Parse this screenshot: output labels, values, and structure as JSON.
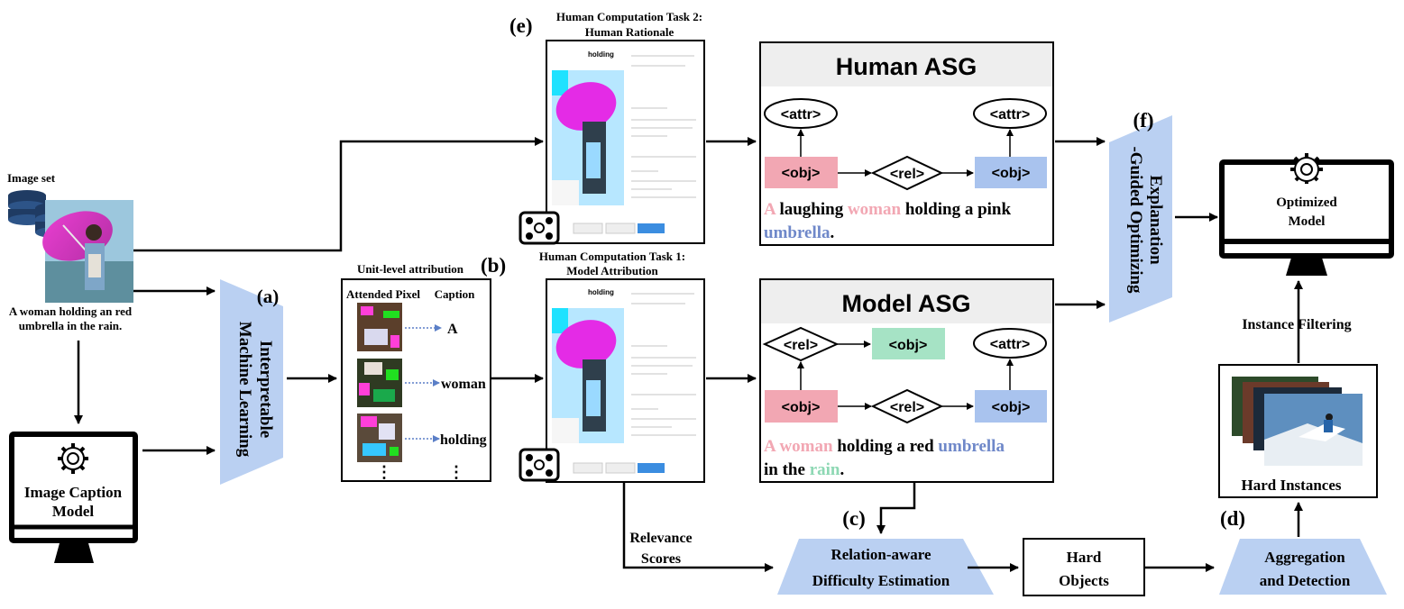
{
  "image_set": {
    "label": "Image set",
    "caption_line1": "A woman holding an red",
    "caption_line2": "umbrella in the rain."
  },
  "caption_model": {
    "line1": "Image Caption",
    "line2": "Model"
  },
  "iml": {
    "marker": "(a)",
    "line1": "Interpretable",
    "line2": "Machine Learning"
  },
  "unit_attribution": {
    "title": "Unit-level attribution",
    "col_pixel": "Attended Pixel",
    "col_caption": "Caption",
    "words": [
      "A",
      "woman",
      "holding"
    ],
    "ellipsis": "⋮"
  },
  "task2": {
    "marker": "(e)",
    "line1": "Human Computation Task 2:",
    "line2": "Human Rationale"
  },
  "task1": {
    "marker": "(b)",
    "line1": "Human Computation Task 1:",
    "line2": "Model Attribution"
  },
  "human_asg": {
    "title": "Human ASG",
    "attr": "<attr>",
    "obj": "<obj>",
    "rel": "<rel>",
    "sent_a": "A",
    "sent_1": " laughing ",
    "sent_woman": "woman",
    "sent_2": " holding a pink",
    "sent_umbrella": "umbrella",
    "sent_3": "."
  },
  "model_asg": {
    "title": "Model ASG",
    "attr": "<attr>",
    "obj": "<obj>",
    "rel": "<rel>",
    "sent_a": "A",
    "sent_space": " ",
    "sent_woman": "woman",
    "sent_1": " holding a red ",
    "sent_umbrella": "umbrella",
    "sent_2": "in the ",
    "sent_rain": "rain",
    "sent_3": "."
  },
  "optimizing": {
    "marker": "(f)",
    "line1": "Explanation",
    "line2": "-Guided Optimizing"
  },
  "optimized_model": {
    "line1": "Optimized",
    "line2": "Model"
  },
  "instance_filtering": "Instance  Filtering",
  "hard_instances": "Hard Instances",
  "relevance": {
    "line1": "Relevance",
    "line2": "Scores"
  },
  "difficulty": {
    "marker": "(c)",
    "line1": "Relation-aware",
    "line2": "Difficulty Estimation"
  },
  "hard_objects": {
    "line1": "Hard",
    "line2": "Objects"
  },
  "aggregation": {
    "marker": "(d)",
    "line1": "Aggregation",
    "line2": "and Detection"
  },
  "colors": {
    "obj_pink": "#f2a7b3",
    "obj_blue": "#a9c3ee",
    "obj_green": "#a6e3c5",
    "trapezoid": "#bad0f2",
    "word_pink": "#f2a7b3",
    "word_blue": "#6f88c9",
    "word_green": "#8ed8b4"
  }
}
